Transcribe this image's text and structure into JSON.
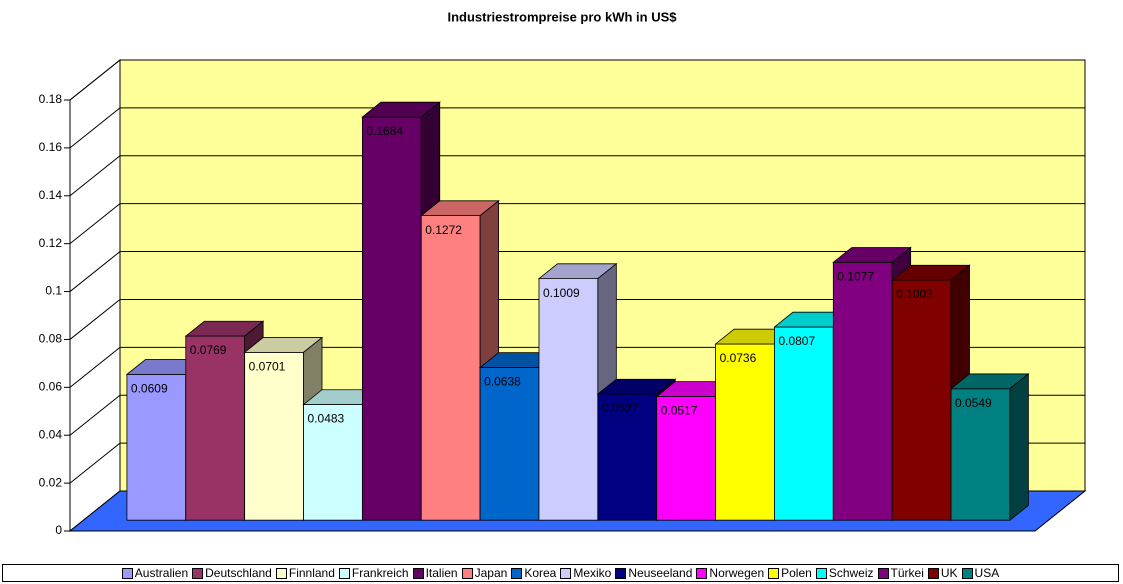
{
  "chart_data": {
    "type": "bar3d",
    "title": "Industriestrompreise pro kWh in US$",
    "categories": [
      "Australien",
      "Deutschland",
      "Finnland",
      "Frankreich",
      "Italien",
      "Japan",
      "Korea",
      "Mexiko",
      "Neuseeland",
      "Norwegen",
      "Polen",
      "Schweiz",
      "Türkei",
      "UK",
      "USA"
    ],
    "values": [
      0.0609,
      0.0769,
      0.0701,
      0.0483,
      0.1684,
      0.1272,
      0.0638,
      0.1009,
      0.0527,
      0.0517,
      0.0736,
      0.0807,
      0.1077,
      0.1003,
      0.0549
    ],
    "colors": [
      "#9999ff",
      "#993366",
      "#ffffcc",
      "#ccffff",
      "#660066",
      "#ff8080",
      "#0066cc",
      "#ccccff",
      "#000080",
      "#ff00ff",
      "#ffff00",
      "#00ffff",
      "#800080",
      "#800000",
      "#008080"
    ],
    "ylim": [
      0,
      0.18
    ],
    "yticks": [
      0,
      0.02,
      0.04,
      0.06,
      0.08,
      0.1,
      0.12,
      0.14,
      0.16,
      0.18
    ],
    "grid": true,
    "legend": "bottom",
    "wall_color": "#ffff99",
    "floor_color": "#3366ff"
  }
}
